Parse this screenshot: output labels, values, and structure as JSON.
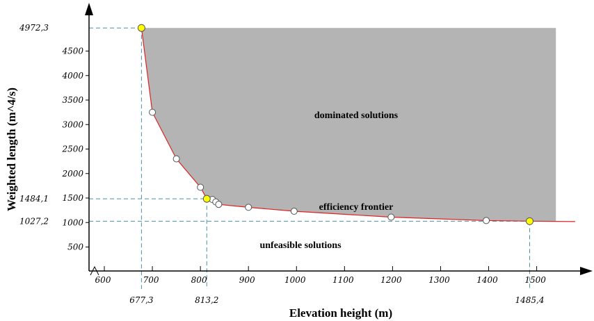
{
  "chart_data": {
    "type": "scatter",
    "xlabel": "Elevation height (m)",
    "ylabel": "Weighted length (m^4/s)",
    "x_ticks": [
      600,
      700,
      800,
      900,
      1000,
      1100,
      1200,
      1300,
      1400,
      1500
    ],
    "y_ticks": [
      500,
      1000,
      1500,
      2000,
      2500,
      3000,
      3500,
      4000,
      4500
    ],
    "region_labels": {
      "dominated": "dominated solutions",
      "frontier": "efficiency frontier",
      "unfeasible": "unfeasible solutions"
    },
    "frontier": [
      {
        "x": 677.3,
        "y": 4972.3
      },
      {
        "x": 700,
        "y": 3250
      },
      {
        "x": 750,
        "y": 2300
      },
      {
        "x": 800,
        "y": 1720
      },
      {
        "x": 813.2,
        "y": 1484.1
      },
      {
        "x": 825,
        "y": 1470
      },
      {
        "x": 832,
        "y": 1420
      },
      {
        "x": 838,
        "y": 1370
      },
      {
        "x": 900,
        "y": 1310
      },
      {
        "x": 995,
        "y": 1230
      },
      {
        "x": 1197,
        "y": 1110
      },
      {
        "x": 1395,
        "y": 1040
      },
      {
        "x": 1485.4,
        "y": 1027.2
      },
      {
        "x": 1580,
        "y": 1020
      }
    ],
    "points": [
      {
        "x": 700,
        "y": 3250
      },
      {
        "x": 750,
        "y": 2300
      },
      {
        "x": 800,
        "y": 1720
      },
      {
        "x": 825,
        "y": 1470
      },
      {
        "x": 832,
        "y": 1420
      },
      {
        "x": 838,
        "y": 1370
      },
      {
        "x": 900,
        "y": 1310
      },
      {
        "x": 995,
        "y": 1230
      },
      {
        "x": 1197,
        "y": 1110
      },
      {
        "x": 1395,
        "y": 1040
      }
    ],
    "highlighted_points": [
      {
        "x": 677.3,
        "y": 4972.3,
        "x_label": "677,3",
        "y_label": "4972,3"
      },
      {
        "x": 813.2,
        "y": 1484.1,
        "x_label": "813,2",
        "y_label": "1484,1"
      },
      {
        "x": 1485.4,
        "y": 1027.2,
        "x_label": "1485,4",
        "y_label": "1027,2"
      }
    ],
    "dominated_region_right_x": 1540,
    "colors": {
      "dominated_fill": "#b4b4b4",
      "frontier_line": "#e02020",
      "point_fill": "#ffffff",
      "highlight_fill": "#ffff00",
      "reference_line": "#4a90a8"
    }
  }
}
